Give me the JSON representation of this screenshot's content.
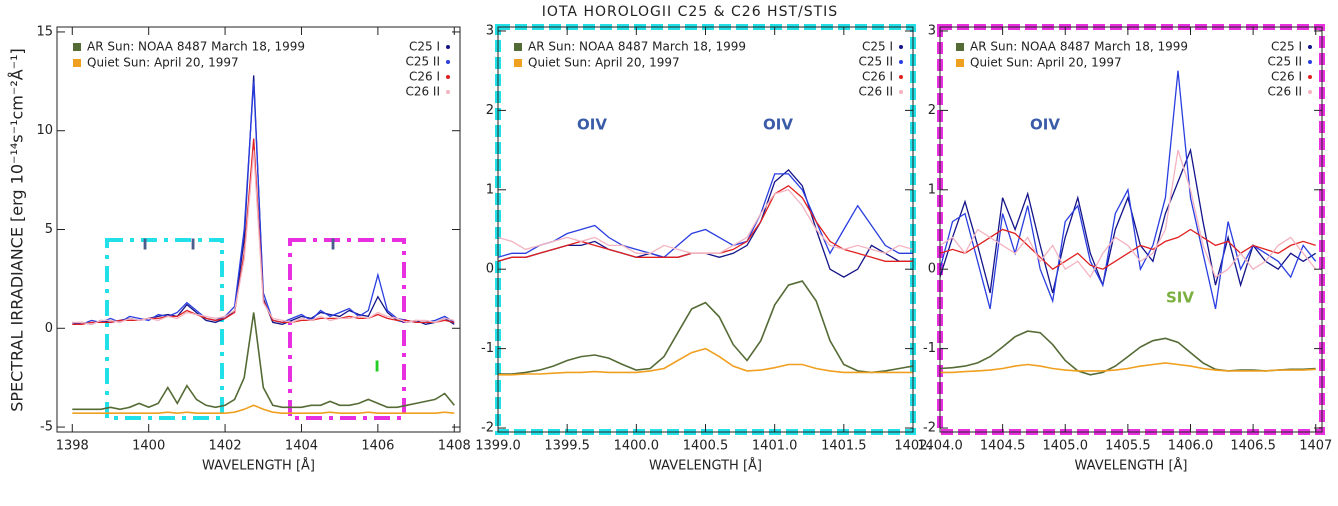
{
  "chart_data": [
    {
      "type": "line",
      "y_label": "SPECTRAL IRRADIANCE [erg 10⁻¹⁴s⁻¹cm⁻²Å⁻¹]",
      "x_label": "WAVELENGTH [Å]",
      "x": [
        1398,
        1398.25,
        1398.5,
        1398.75,
        1399,
        1399.25,
        1399.5,
        1399.75,
        1400,
        1400.25,
        1400.5,
        1400.75,
        1401,
        1401.25,
        1401.5,
        1401.75,
        1402,
        1402.25,
        1402.5,
        1402.75,
        1403,
        1403.25,
        1403.5,
        1403.75,
        1404,
        1404.25,
        1404.5,
        1404.75,
        1405,
        1405.25,
        1405.5,
        1405.75,
        1406,
        1406.25,
        1406.5,
        1406.75,
        1407,
        1407.25,
        1407.5,
        1407.75,
        1408
      ],
      "xlim": [
        1397.6,
        1408.15
      ],
      "xticks": [
        1398,
        1400,
        1402,
        1404,
        1406,
        1408
      ],
      "ylim": [
        -5.25,
        15.25
      ],
      "yticks": [
        -5,
        0,
        5,
        10,
        15
      ],
      "annotations": [
        "I",
        "I",
        "I",
        "I"
      ],
      "series": [
        {
          "name": "AR Sun: NOAA 8487 March 18, 1999",
          "color": "#556b35",
          "values": [
            -4.1,
            -4.1,
            -4.1,
            -4.1,
            -4.0,
            -4.1,
            -4.0,
            -3.8,
            -4.0,
            -3.8,
            -3.0,
            -3.8,
            -2.9,
            -3.6,
            -3.9,
            -4.0,
            -3.9,
            -3.6,
            -2.5,
            0.8,
            -3.0,
            -3.9,
            -4.0,
            -4.0,
            -4.0,
            -3.9,
            -3.9,
            -3.7,
            -3.9,
            -3.9,
            -3.8,
            -3.6,
            -3.8,
            -4.0,
            -4.0,
            -3.9,
            -3.8,
            -3.7,
            -3.6,
            -3.3,
            -3.9
          ]
        },
        {
          "name": "Quiet Sun: April 20, 1997",
          "color": "#f0a020",
          "values": [
            -4.3,
            -4.3,
            -4.3,
            -4.3,
            -4.3,
            -4.3,
            -4.3,
            -4.3,
            -4.3,
            -4.3,
            -4.25,
            -4.3,
            -4.25,
            -4.3,
            -4.3,
            -4.3,
            -4.3,
            -4.25,
            -4.1,
            -3.9,
            -4.1,
            -4.25,
            -4.3,
            -4.3,
            -4.3,
            -4.3,
            -4.3,
            -4.25,
            -4.3,
            -4.3,
            -4.3,
            -4.25,
            -4.3,
            -4.3,
            -4.3,
            -4.3,
            -4.3,
            -4.3,
            -4.3,
            -4.25,
            -4.3
          ]
        },
        {
          "name": "C25 I",
          "color": "#14148a",
          "values": [
            0.2,
            0.3,
            0.2,
            0.4,
            0.3,
            0.4,
            0.5,
            0.4,
            0.5,
            0.6,
            0.7,
            0.6,
            1.2,
            0.8,
            0.4,
            0.3,
            0.5,
            0.9,
            4.5,
            12.8,
            1.5,
            0.3,
            0.2,
            0.4,
            0.6,
            0.5,
            0.8,
            0.7,
            0.6,
            0.9,
            0.7,
            0.6,
            1.6,
            0.8,
            0.4,
            0.3,
            0.4,
            0.2,
            0.3,
            0.5,
            0.2
          ]
        },
        {
          "name": "C25 II",
          "color": "#2a3ee0",
          "values": [
            0.3,
            0.2,
            0.4,
            0.3,
            0.5,
            0.3,
            0.6,
            0.5,
            0.4,
            0.7,
            0.6,
            0.8,
            1.3,
            0.9,
            0.5,
            0.4,
            0.6,
            1.1,
            5.0,
            12.5,
            1.8,
            0.4,
            0.3,
            0.5,
            0.7,
            0.4,
            0.9,
            0.6,
            0.8,
            1.0,
            0.6,
            0.9,
            2.7,
            0.9,
            0.5,
            0.4,
            0.3,
            0.3,
            0.4,
            0.6,
            0.3
          ]
        },
        {
          "name": "C26 I",
          "color": "#e02020",
          "values": [
            0.2,
            0.2,
            0.3,
            0.3,
            0.3,
            0.4,
            0.4,
            0.4,
            0.5,
            0.5,
            0.6,
            0.6,
            0.9,
            0.7,
            0.5,
            0.4,
            0.5,
            0.8,
            3.8,
            9.6,
            1.4,
            0.4,
            0.3,
            0.3,
            0.4,
            0.4,
            0.5,
            0.5,
            0.5,
            0.6,
            0.5,
            0.5,
            0.7,
            0.5,
            0.4,
            0.4,
            0.3,
            0.3,
            0.3,
            0.4,
            0.3
          ]
        },
        {
          "name": "C26 II",
          "color": "#f4b3c0",
          "values": [
            0.3,
            0.3,
            0.2,
            0.4,
            0.4,
            0.3,
            0.5,
            0.4,
            0.5,
            0.4,
            0.6,
            0.5,
            0.8,
            0.7,
            0.6,
            0.5,
            0.6,
            0.9,
            3.5,
            9.0,
            1.3,
            0.5,
            0.4,
            0.3,
            0.5,
            0.4,
            0.6,
            0.4,
            0.5,
            0.5,
            0.6,
            0.5,
            0.8,
            0.6,
            0.5,
            0.3,
            0.4,
            0.4,
            0.3,
            0.5,
            0.4
          ]
        }
      ]
    },
    {
      "type": "line",
      "title": "IOTA HOROLOGII C25 & C26 HST/STIS",
      "x_label": "WAVELENGTH [Å]",
      "x": [
        1399.0,
        1399.1,
        1399.2,
        1399.3,
        1399.4,
        1399.5,
        1399.6,
        1399.7,
        1399.8,
        1399.9,
        1400.0,
        1400.1,
        1400.2,
        1400.3,
        1400.4,
        1400.5,
        1400.6,
        1400.7,
        1400.8,
        1400.9,
        1401.0,
        1401.1,
        1401.2,
        1401.3,
        1401.4,
        1401.5,
        1401.6,
        1401.7,
        1401.8,
        1401.9,
        1402.0
      ],
      "xlim": [
        1399.0,
        1402.0
      ],
      "xticks": [
        {
          "value": 1399,
          "label": "1399.0"
        },
        1399.5,
        {
          "value": 1400,
          "label": "1400.0"
        },
        1400.5,
        {
          "value": 1401,
          "label": "1401.0"
        },
        1401.5,
        {
          "value": 1402,
          "label": "1402."
        }
      ],
      "ylim": [
        -2.05,
        3.05
      ],
      "yticks": [
        -2,
        -1,
        0,
        1,
        2,
        3
      ],
      "annotations": [
        "OIV",
        "OIV"
      ],
      "series": [
        {
          "name": "AR Sun: NOAA 8487 March 18, 1999",
          "color": "#556b35",
          "values": [
            -1.32,
            -1.32,
            -1.3,
            -1.27,
            -1.22,
            -1.15,
            -1.1,
            -1.08,
            -1.12,
            -1.2,
            -1.27,
            -1.25,
            -1.1,
            -0.8,
            -0.5,
            -0.42,
            -0.6,
            -0.95,
            -1.15,
            -0.9,
            -0.45,
            -0.2,
            -0.15,
            -0.4,
            -0.9,
            -1.2,
            -1.28,
            -1.3,
            -1.28,
            -1.25,
            -1.22
          ]
        },
        {
          "name": "Quiet Sun: April 20, 1997",
          "color": "#f0a020",
          "values": [
            -1.33,
            -1.33,
            -1.32,
            -1.32,
            -1.31,
            -1.3,
            -1.3,
            -1.29,
            -1.3,
            -1.3,
            -1.3,
            -1.28,
            -1.25,
            -1.15,
            -1.05,
            -1.0,
            -1.1,
            -1.22,
            -1.28,
            -1.27,
            -1.24,
            -1.2,
            -1.2,
            -1.25,
            -1.28,
            -1.3,
            -1.3,
            -1.3,
            -1.3,
            -1.3,
            -1.3
          ]
        },
        {
          "name": "C25 I",
          "color": "#14148a",
          "values": [
            0.1,
            0.15,
            0.15,
            0.2,
            0.25,
            0.3,
            0.3,
            0.35,
            0.25,
            0.2,
            0.15,
            0.2,
            0.15,
            0.15,
            0.2,
            0.2,
            0.15,
            0.2,
            0.3,
            0.6,
            1.1,
            1.25,
            1.05,
            0.5,
            0.0,
            -0.1,
            0.0,
            0.3,
            0.2,
            0.1,
            0.1
          ]
        },
        {
          "name": "C25 II",
          "color": "#2a3ee0",
          "values": [
            0.15,
            0.2,
            0.2,
            0.3,
            0.35,
            0.45,
            0.5,
            0.55,
            0.4,
            0.3,
            0.25,
            0.2,
            0.15,
            0.3,
            0.45,
            0.5,
            0.4,
            0.3,
            0.35,
            0.7,
            1.2,
            1.2,
            1.0,
            0.6,
            0.2,
            0.5,
            0.8,
            0.55,
            0.3,
            0.2,
            0.2
          ]
        },
        {
          "name": "C26 I",
          "color": "#e02020",
          "values": [
            0.1,
            0.15,
            0.15,
            0.2,
            0.25,
            0.3,
            0.35,
            0.3,
            0.25,
            0.2,
            0.15,
            0.15,
            0.15,
            0.15,
            0.2,
            0.2,
            0.2,
            0.25,
            0.35,
            0.6,
            0.95,
            1.05,
            0.9,
            0.6,
            0.35,
            0.25,
            0.2,
            0.15,
            0.1,
            0.1,
            0.1
          ]
        },
        {
          "name": "C26 II",
          "color": "#f4b3c0",
          "values": [
            0.4,
            0.35,
            0.25,
            0.3,
            0.35,
            0.4,
            0.35,
            0.4,
            0.3,
            0.3,
            0.2,
            0.2,
            0.3,
            0.25,
            0.2,
            0.2,
            0.2,
            0.3,
            0.4,
            0.7,
            0.95,
            1.0,
            0.8,
            0.5,
            0.3,
            0.25,
            0.3,
            0.25,
            0.2,
            0.3,
            0.25
          ]
        }
      ]
    },
    {
      "type": "line",
      "x_label": "WAVELENGTH [Å]",
      "x": [
        1404.0,
        1404.1,
        1404.2,
        1404.3,
        1404.4,
        1404.5,
        1404.6,
        1404.7,
        1404.8,
        1404.9,
        1405.0,
        1405.1,
        1405.2,
        1405.3,
        1405.4,
        1405.5,
        1405.6,
        1405.7,
        1405.8,
        1405.9,
        1406.0,
        1406.1,
        1406.2,
        1406.3,
        1406.4,
        1406.5,
        1406.6,
        1406.7,
        1406.8,
        1406.9,
        1407.0
      ],
      "xlim": [
        1404.0,
        1407.05
      ],
      "xticks": [
        {
          "value": 1404,
          "label": "1404.0"
        },
        1404.5,
        {
          "value": 1405,
          "label": "1405.0"
        },
        1405.5,
        {
          "value": 1406,
          "label": "1406.0"
        },
        1406.5,
        1407
      ],
      "ylim": [
        -2.05,
        3.05
      ],
      "yticks": [
        -2,
        -1,
        0,
        1,
        2,
        3
      ],
      "annotations": [
        "OIV",
        "SIV"
      ],
      "series": [
        {
          "name": "AR Sun: NOAA 8487 March 18, 1999",
          "color": "#556b35",
          "values": [
            -1.25,
            -1.24,
            -1.22,
            -1.18,
            -1.1,
            -0.98,
            -0.85,
            -0.78,
            -0.8,
            -0.95,
            -1.15,
            -1.28,
            -1.33,
            -1.3,
            -1.22,
            -1.1,
            -0.98,
            -0.9,
            -0.87,
            -0.92,
            -1.05,
            -1.18,
            -1.26,
            -1.28,
            -1.27,
            -1.27,
            -1.28,
            -1.27,
            -1.26,
            -1.26,
            -1.25
          ]
        },
        {
          "name": "Quiet Sun: April 20, 1997",
          "color": "#f0a020",
          "values": [
            -1.3,
            -1.3,
            -1.29,
            -1.28,
            -1.27,
            -1.25,
            -1.22,
            -1.2,
            -1.22,
            -1.25,
            -1.27,
            -1.28,
            -1.28,
            -1.28,
            -1.27,
            -1.25,
            -1.22,
            -1.2,
            -1.18,
            -1.2,
            -1.22,
            -1.25,
            -1.27,
            -1.28,
            -1.28,
            -1.28,
            -1.28,
            -1.27,
            -1.27,
            -1.27,
            -1.26
          ]
        },
        {
          "name": "C25 I",
          "color": "#14148a",
          "values": [
            -0.1,
            0.4,
            0.85,
            0.3,
            -0.3,
            0.9,
            0.5,
            0.95,
            0.3,
            -0.3,
            0.4,
            0.9,
            0.2,
            -0.2,
            0.5,
            0.9,
            0.3,
            0.1,
            0.7,
            1.1,
            1.5,
            0.6,
            -0.2,
            0.4,
            -0.2,
            0.3,
            0.1,
            0.0,
            0.2,
            0.1,
            0.2
          ]
        },
        {
          "name": "C25 II",
          "color": "#2a3ee0",
          "values": [
            0.0,
            0.6,
            0.7,
            0.1,
            -0.5,
            0.7,
            0.2,
            0.8,
            0.0,
            -0.4,
            0.6,
            0.8,
            0.1,
            -0.2,
            0.7,
            1.0,
            0.0,
            0.3,
            0.9,
            2.5,
            0.9,
            0.2,
            -0.5,
            0.6,
            0.0,
            0.3,
            0.2,
            0.1,
            -0.1,
            0.3,
            0.1
          ]
        },
        {
          "name": "C26 I",
          "color": "#e02020",
          "values": [
            0.2,
            0.25,
            0.2,
            0.3,
            0.4,
            0.5,
            0.45,
            0.3,
            0.15,
            0.0,
            0.1,
            0.2,
            0.05,
            0.0,
            0.1,
            0.2,
            0.3,
            0.25,
            0.35,
            0.4,
            0.5,
            0.4,
            0.3,
            0.35,
            0.2,
            0.3,
            0.25,
            0.2,
            0.3,
            0.35,
            0.3
          ]
        },
        {
          "name": "C26 II",
          "color": "#f4b3c0",
          "values": [
            0.3,
            0.4,
            0.2,
            0.5,
            0.4,
            0.3,
            0.2,
            0.4,
            0.1,
            0.3,
            0.0,
            0.1,
            -0.1,
            0.2,
            0.4,
            0.3,
            0.1,
            0.2,
            0.5,
            1.5,
            1.0,
            0.3,
            -0.1,
            0.0,
            0.2,
            0.0,
            0.1,
            0.3,
            0.4,
            0.2,
            0.0
          ]
        }
      ]
    }
  ]
}
